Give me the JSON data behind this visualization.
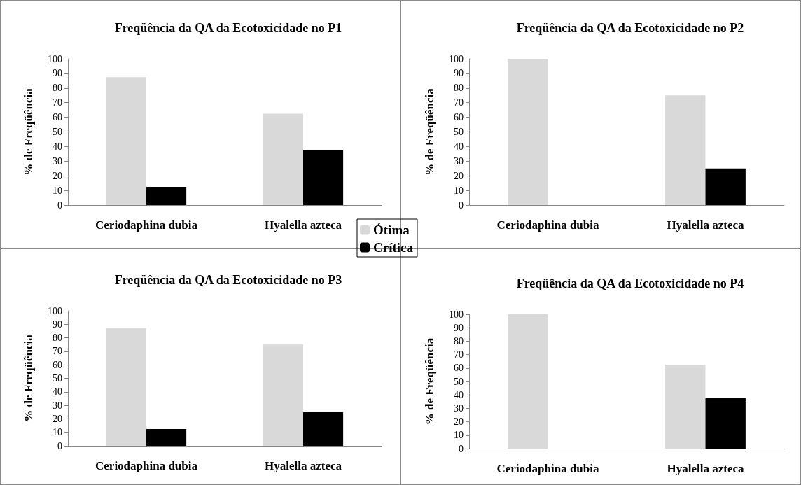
{
  "chart_data": [
    {
      "type": "bar",
      "title": "Freqüência da QA da Ecotoxicidade no P1",
      "ylabel": "% de Freqüência",
      "categories": [
        "Ceriodaphina dubia",
        "Hyalella azteca"
      ],
      "series": [
        {
          "name": "Ótima",
          "color": "#d9d9d9",
          "values": [
            87.5,
            62.5
          ]
        },
        {
          "name": "Crítica",
          "color": "#000000",
          "values": [
            12.5,
            37.5
          ]
        }
      ],
      "ylim": [
        0,
        100
      ],
      "yticks": [
        0,
        10,
        20,
        30,
        40,
        50,
        60,
        70,
        80,
        90,
        100
      ],
      "legend": "bottom right"
    },
    {
      "type": "bar",
      "title": "Freqüência da QA da Ecotoxicidade no P2",
      "ylabel": "% de Freqüência",
      "categories": [
        "Ceriodaphina dubia",
        "Hyalella azteca"
      ],
      "series": [
        {
          "color": "#d9d9d9",
          "values": [
            100,
            75
          ]
        },
        {
          "color": "#000000",
          "values": [
            0,
            25
          ]
        }
      ],
      "ylim": [
        0,
        100
      ],
      "yticks": [
        0,
        10,
        20,
        30,
        40,
        50,
        60,
        70,
        80,
        90,
        100
      ]
    },
    {
      "type": "bar",
      "title": "Freqüência da QA da Ecotoxicidade no P3",
      "ylabel": "% de Freqüência",
      "categories": [
        "Ceriodaphina dubia",
        "Hyalella azteca"
      ],
      "series": [
        {
          "color": "#d9d9d9",
          "values": [
            87.5,
            75
          ]
        },
        {
          "color": "#000000",
          "values": [
            12.5,
            25
          ]
        }
      ],
      "ylim": [
        0,
        100
      ],
      "yticks": [
        0,
        10,
        20,
        30,
        40,
        50,
        60,
        70,
        80,
        90,
        100
      ]
    },
    {
      "type": "bar",
      "title": "Freqüência da QA da Ecotoxicidade no P4",
      "ylabel": "% de Freqüência",
      "categories": [
        "Ceriodaphina dubia",
        "Hyalella azteca"
      ],
      "series": [
        {
          "color": "#d9d9d9",
          "values": [
            100,
            62.5
          ]
        },
        {
          "color": "#000000",
          "values": [
            0,
            37.5
          ]
        }
      ],
      "ylim": [
        0,
        100
      ],
      "yticks": [
        0,
        10,
        20,
        30,
        40,
        50,
        60,
        70,
        80,
        90,
        100
      ]
    }
  ]
}
